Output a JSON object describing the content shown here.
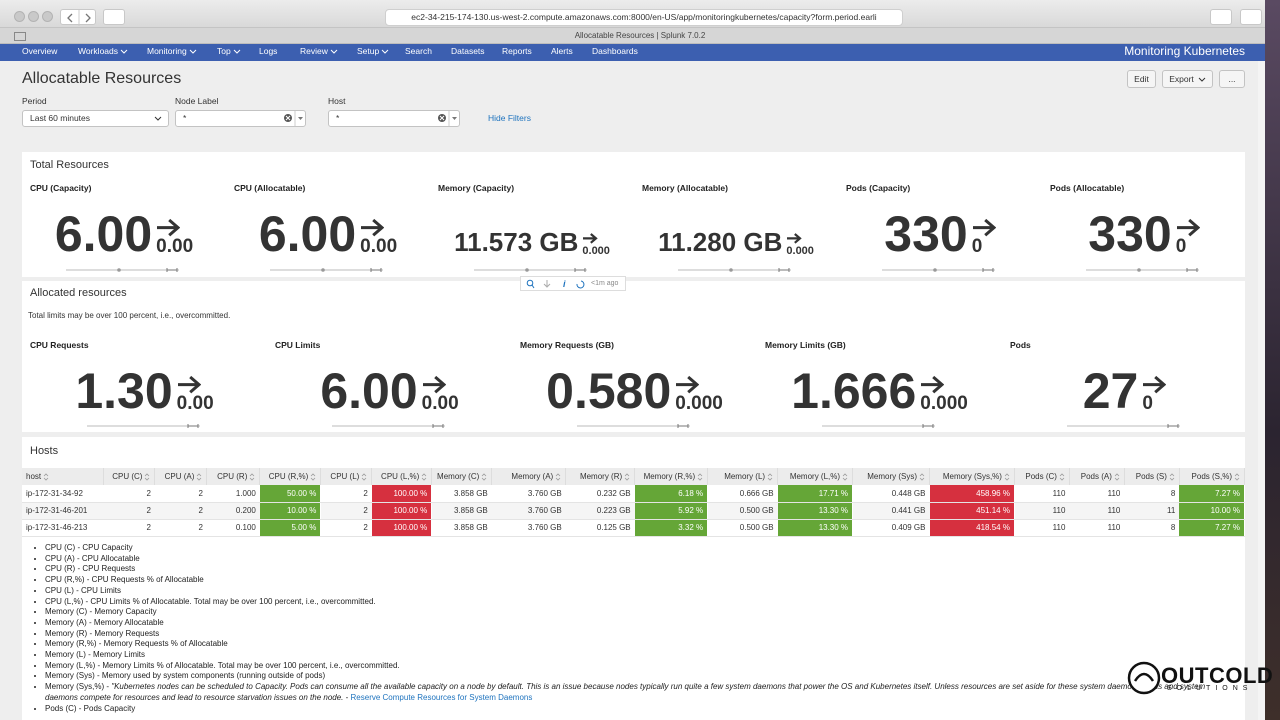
{
  "browser": {
    "url": "ec2-34-215-174-130.us-west-2.compute.amazonaws.com:8000/en-US/app/monitoringkubernetes/capacity?form.period.earli",
    "tab_title": "Allocatable Resources | Splunk 7.0.2"
  },
  "nav": {
    "items": [
      "Overview",
      "Workloads",
      "Monitoring",
      "Top",
      "Logs",
      "Review",
      "Setup",
      "Search",
      "Datasets",
      "Reports",
      "Alerts",
      "Dashboards"
    ],
    "dropdowns": [
      false,
      true,
      true,
      true,
      false,
      true,
      true,
      false,
      false,
      false,
      false,
      false
    ],
    "app_title": "Monitoring Kubernetes"
  },
  "page": {
    "title": "Allocatable Resources",
    "buttons": [
      "Edit",
      "Export",
      "..."
    ]
  },
  "filters": {
    "fields": [
      {
        "label": "Period",
        "value": "Last 60 minutes"
      },
      {
        "label": "Node Label",
        "value": "*"
      },
      {
        "label": "Host",
        "value": "*"
      }
    ],
    "hide": "Hide Filters"
  },
  "total_resources": {
    "title": "Total Resources",
    "panels": [
      {
        "label": "CPU (Capacity)",
        "value": "6.00",
        "delta": "0.00"
      },
      {
        "label": "CPU (Allocatable)",
        "value": "6.00",
        "delta": "0.00"
      },
      {
        "label": "Memory (Capacity)",
        "value": "11.573 GB",
        "delta": "0.000"
      },
      {
        "label": "Memory (Allocatable)",
        "value": "11.280 GB",
        "delta": "0.000"
      },
      {
        "label": "Pods (Capacity)",
        "value": "330",
        "delta": "0"
      },
      {
        "label": "Pods (Allocatable)",
        "value": "330",
        "delta": "0"
      }
    ]
  },
  "panel_toolbar": {
    "timestamp": "<1m ago"
  },
  "allocated": {
    "title": "Allocated resources",
    "note": "Total limits may be over 100 percent, i.e., overcommitted.",
    "panels": [
      {
        "label": "CPU Requests",
        "value": "1.30",
        "delta": "0.00"
      },
      {
        "label": "CPU Limits",
        "value": "6.00",
        "delta": "0.00"
      },
      {
        "label": "Memory Requests (GB)",
        "value": "0.580",
        "delta": "0.000"
      },
      {
        "label": "Memory Limits (GB)",
        "value": "1.666",
        "delta": "0.000"
      },
      {
        "label": "Pods",
        "value": "27",
        "delta": "0"
      }
    ]
  },
  "hosts": {
    "title": "Hosts",
    "columns": [
      {
        "name": "host"
      },
      {
        "name": "CPU (C)"
      },
      {
        "name": "CPU (A)"
      },
      {
        "name": "CPU (R)"
      },
      {
        "name": "CPU (R,%)",
        "color": "#65a637"
      },
      {
        "name": "CPU (L)"
      },
      {
        "name": "CPU (L,%)",
        "color": "#d6303f"
      },
      {
        "name": "Memory (C)"
      },
      {
        "name": "Memory (A)"
      },
      {
        "name": "Memory (R)"
      },
      {
        "name": "Memory (R,%)",
        "color": "#65a637"
      },
      {
        "name": "Memory (L)"
      },
      {
        "name": "Memory (L,%)",
        "color": "#65a637"
      },
      {
        "name": "Memory (Sys)"
      },
      {
        "name": "Memory (Sys,%)",
        "color": "#d6303f"
      },
      {
        "name": "Pods (C)"
      },
      {
        "name": "Pods (A)"
      },
      {
        "name": "Pods (S)"
      },
      {
        "name": "Pods (S,%)",
        "color": "#65a637"
      }
    ],
    "rows": [
      [
        "ip-172-31-34-92",
        "2",
        "2",
        "1.000",
        "50.00 %",
        "2",
        "100.00 %",
        "3.858 GB",
        "3.760 GB",
        "0.232 GB",
        "6.18 %",
        "0.666 GB",
        "17.71 %",
        "0.448 GB",
        "458.96 %",
        "110",
        "110",
        "8",
        "7.27 %"
      ],
      [
        "ip-172-31-46-201",
        "2",
        "2",
        "0.200",
        "10.00 %",
        "2",
        "100.00 %",
        "3.858 GB",
        "3.760 GB",
        "0.223 GB",
        "5.92 %",
        "0.500 GB",
        "13.30 %",
        "0.441 GB",
        "451.14 %",
        "110",
        "110",
        "11",
        "10.00 %"
      ],
      [
        "ip-172-31-46-213",
        "2",
        "2",
        "0.100",
        "5.00 %",
        "2",
        "100.00 %",
        "3.858 GB",
        "3.760 GB",
        "0.125 GB",
        "3.32 %",
        "0.500 GB",
        "13.30 %",
        "0.409 GB",
        "418.54 %",
        "110",
        "110",
        "8",
        "7.27 %"
      ]
    ]
  },
  "legend": [
    {
      "text": "CPU (C) - CPU Capacity"
    },
    {
      "text": "CPU (A) - CPU Allocatable"
    },
    {
      "text": "CPU (R) - CPU Requests"
    },
    {
      "text": "CPU (R,%) - CPU Requests % of Allocatable"
    },
    {
      "text": "CPU (L) - CPU Limits"
    },
    {
      "text": "CPU (L,%) - CPU Limits % of Allocatable. Total may be over 100 percent, i.e., overcommitted."
    },
    {
      "text": "Memory (C) - Memory Capacity"
    },
    {
      "text": "Memory (A) - Memory Allocatable"
    },
    {
      "text": "Memory (R) - Memory Requests"
    },
    {
      "text": "Memory (R,%) - Memory Requests % of Allocatable"
    },
    {
      "text": "Memory (L) - Memory Limits"
    },
    {
      "text": "Memory (L,%) - Memory Limits % of Allocatable. Total may be over 100 percent, i.e., overcommitted."
    },
    {
      "text": "Memory (Sys) - Memory used by system components (running outside of pods)"
    },
    {
      "text": "Memory (Sys,%) - ",
      "quote": "\"Kubernetes nodes can be scheduled to Capacity. Pods can consume all the available capacity on a node by default. This is an issue because nodes typically run quite a few system daemons that power the OS and Kubernetes itself. Unless resources are set aside for these system daemons, pods and system daemons compete for resources and lead to resource starvation issues on the node.",
      "link_prefix": " - ",
      "link": "Reserve Compute Resources for System Daemons"
    },
    {
      "text": "Pods (C) - Pods Capacity"
    }
  ],
  "watermark": {
    "brand": "OUTCOLD",
    "sub": "SOLUTIONS"
  }
}
